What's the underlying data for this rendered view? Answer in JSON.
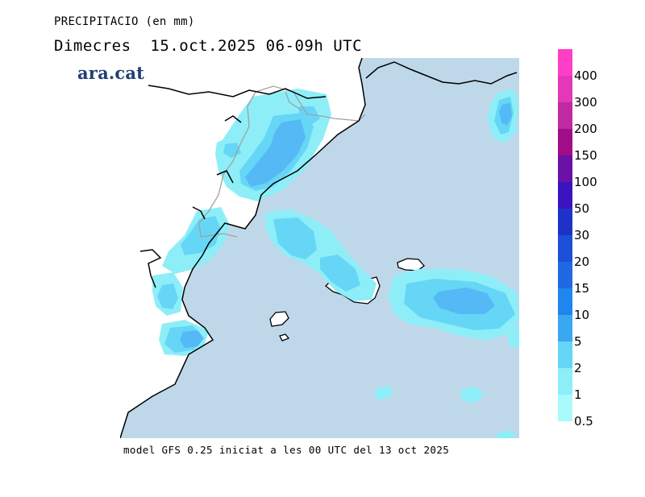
{
  "header": {
    "title": "PRECIPITACIO (en mm)",
    "subtitle": "Dimecres  15.oct.2025 06-09h UTC",
    "logo": "ara.cat"
  },
  "footer": {
    "model_note": "model GFS 0.25 iniciat a les 00 UTC del 13 oct 2025"
  },
  "legend": {
    "labels": [
      "400",
      "300",
      "200",
      "150",
      "100",
      "50",
      "30",
      "20",
      "15",
      "10",
      "5",
      "2",
      "1",
      "0.5"
    ],
    "colors": [
      "#ff3ec8",
      "#e438b8",
      "#c02aa0",
      "#a10c87",
      "#6a12a8",
      "#3b14c0",
      "#1e32c8",
      "#1d4fd8",
      "#1f6ae2",
      "#1f86f0",
      "#3aa8f0",
      "#66d6f6",
      "#8deef8",
      "#a9fbfb"
    ]
  },
  "map": {
    "colors": {
      "sea": "#bed8ea",
      "land": "#ffffff",
      "coast": "#000000",
      "border": "#a0a0a0",
      "precip_light": "#8deef8",
      "precip_medium": "#66d6f6",
      "precip_heavy": "#54b9f4"
    }
  }
}
